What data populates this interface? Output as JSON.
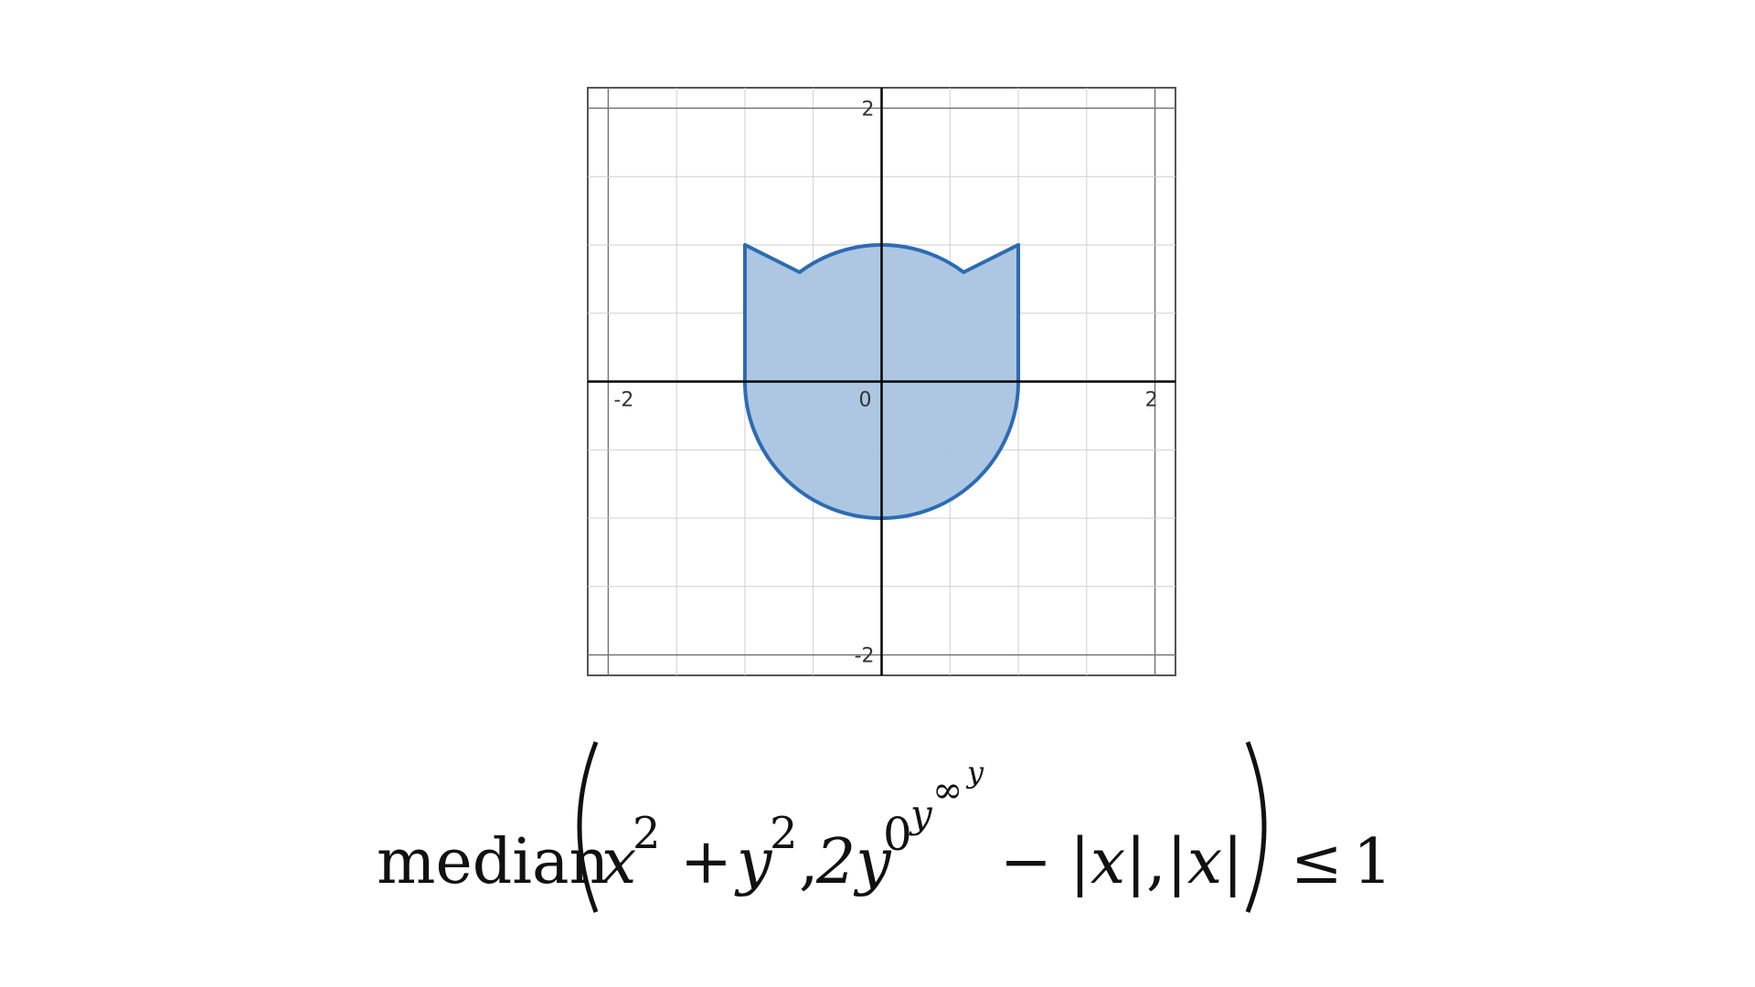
{
  "graph": {
    "x_range": [
      -2.15,
      2.15
    ],
    "y_range": [
      -2.15,
      2.15
    ],
    "grid_step": 0.5,
    "x_tick_labels": [
      {
        "value": -2,
        "text": "-2"
      },
      {
        "value": 0,
        "text": "0"
      },
      {
        "value": 2,
        "text": "2"
      }
    ],
    "y_tick_labels": [
      {
        "value": 2,
        "text": "2"
      },
      {
        "value": -2,
        "text": "-2"
      }
    ],
    "region": {
      "description_points": {
        "left_ear_tip": [
          -1,
          1
        ],
        "right_ear_tip": [
          1,
          1
        ],
        "ear_notch_left": [
          -0.6,
          0.8
        ],
        "ear_notch_right": [
          0.6,
          0.8
        ],
        "head_top": [
          0,
          1
        ],
        "bottom": [
          0,
          -1
        ]
      },
      "fill_color": "#a9c4e0",
      "stroke_color": "#2d6bb3"
    },
    "grid_color": "#cfcfcf",
    "axis_color": "#000000",
    "frame_color": "#555555"
  },
  "formula": {
    "func_name": "median",
    "term1_base_x": "x",
    "term1_exp": "2",
    "plus": "+",
    "term1_base_y": "y",
    "term1_exp_y": "2",
    "comma1": ",",
    "term2_coef": "2y",
    "term2_exp_base": "0",
    "term2_exp_y": "y",
    "term2_exp_inf": "∞",
    "term2_exp_inf_y": "y",
    "minus": "−",
    "abs1": "|x|",
    "comma2": ",",
    "abs2": "|x|",
    "relation": "≤",
    "rhs": "1"
  }
}
